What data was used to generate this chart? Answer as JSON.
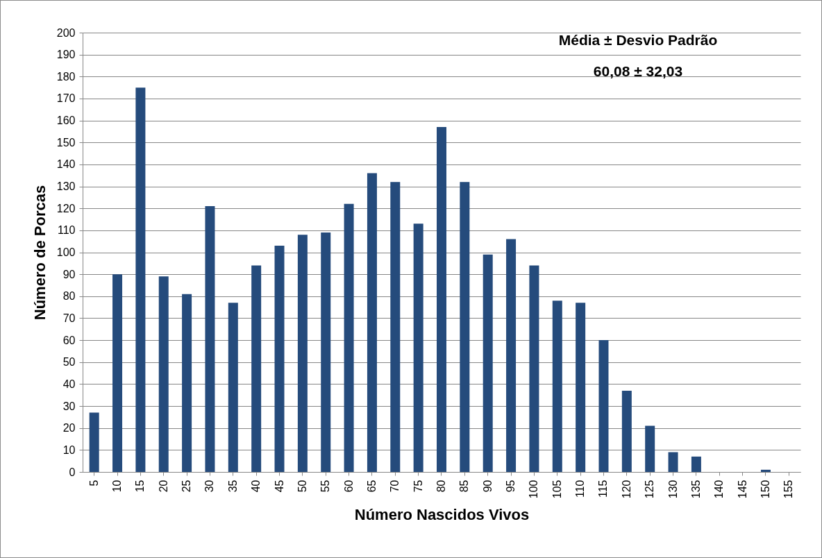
{
  "chart_data": {
    "type": "bar",
    "xlabel": "Número Nascidos Vivos",
    "ylabel": "Número  de Porcas",
    "categories": [
      "5",
      "10",
      "15",
      "20",
      "25",
      "30",
      "35",
      "40",
      "45",
      "50",
      "55",
      "60",
      "65",
      "70",
      "75",
      "80",
      "85",
      "90",
      "95",
      "100",
      "105",
      "110",
      "115",
      "120",
      "125",
      "130",
      "135",
      "140",
      "145",
      "150",
      "155"
    ],
    "values": [
      27,
      90,
      175,
      89,
      81,
      121,
      77,
      94,
      103,
      108,
      109,
      122,
      136,
      132,
      113,
      157,
      132,
      99,
      106,
      94,
      78,
      77,
      60,
      37,
      21,
      9,
      7,
      0,
      0,
      1,
      0
    ],
    "color": "#254b7c",
    "ylim": [
      0,
      200
    ],
    "yticks": [
      0,
      10,
      20,
      30,
      40,
      50,
      60,
      70,
      80,
      90,
      100,
      110,
      120,
      130,
      140,
      150,
      160,
      170,
      180,
      190,
      200
    ],
    "grid": "y",
    "annotations": [
      "Média ± Desvio Padrão",
      "60,08 ± 32,03"
    ]
  }
}
